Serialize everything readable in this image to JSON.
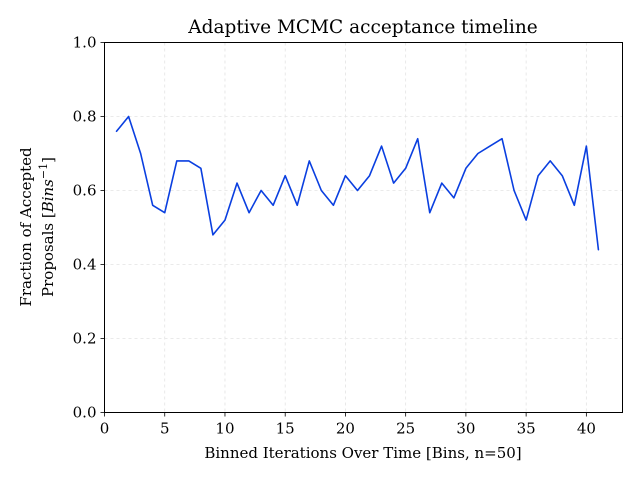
{
  "chart_data": {
    "type": "line",
    "title": "Adaptive MCMC acceptance timeline",
    "xlabel": "Binned Iterations Over Time [Bins, n=50]",
    "ylabel_line1": "Fraction of Accepted",
    "ylabel_line2_prefix": "Proposals [",
    "ylabel_line2_var": "Bins",
    "ylabel_line2_sup": "−1",
    "ylabel_line2_suffix": "]",
    "xlim": [
      -0.0,
      43.0
    ],
    "ylim": [
      0.0,
      1.0
    ],
    "xticks": [
      0,
      5,
      10,
      15,
      20,
      25,
      30,
      35,
      40
    ],
    "xtick_labels": [
      "0",
      "5",
      "10",
      "15",
      "20",
      "25",
      "30",
      "35",
      "40"
    ],
    "yticks": [
      0.0,
      0.2,
      0.4,
      0.6,
      0.8,
      1.0
    ],
    "ytick_labels": [
      "0.0",
      "0.2",
      "0.4",
      "0.6",
      "0.8",
      "1.0"
    ],
    "grid": true,
    "series": [
      {
        "color": "#0a3fe0",
        "x": [
          1,
          2,
          3,
          4,
          5,
          6,
          7,
          8,
          9,
          10,
          11,
          12,
          13,
          14,
          15,
          16,
          17,
          18,
          19,
          20,
          21,
          22,
          23,
          24,
          25,
          26,
          27,
          28,
          29,
          30,
          31,
          32,
          33,
          34,
          35,
          36,
          37,
          38,
          39,
          40,
          41
        ],
        "y": [
          0.76,
          0.8,
          0.7,
          0.56,
          0.54,
          0.68,
          0.68,
          0.66,
          0.48,
          0.52,
          0.62,
          0.54,
          0.6,
          0.56,
          0.64,
          0.56,
          0.68,
          0.6,
          0.56,
          0.64,
          0.6,
          0.64,
          0.72,
          0.62,
          0.66,
          0.74,
          0.54,
          0.62,
          0.58,
          0.66,
          0.7,
          0.72,
          0.74,
          0.6,
          0.52,
          0.64,
          0.68,
          0.64,
          0.56,
          0.72,
          0.44
        ]
      }
    ]
  }
}
